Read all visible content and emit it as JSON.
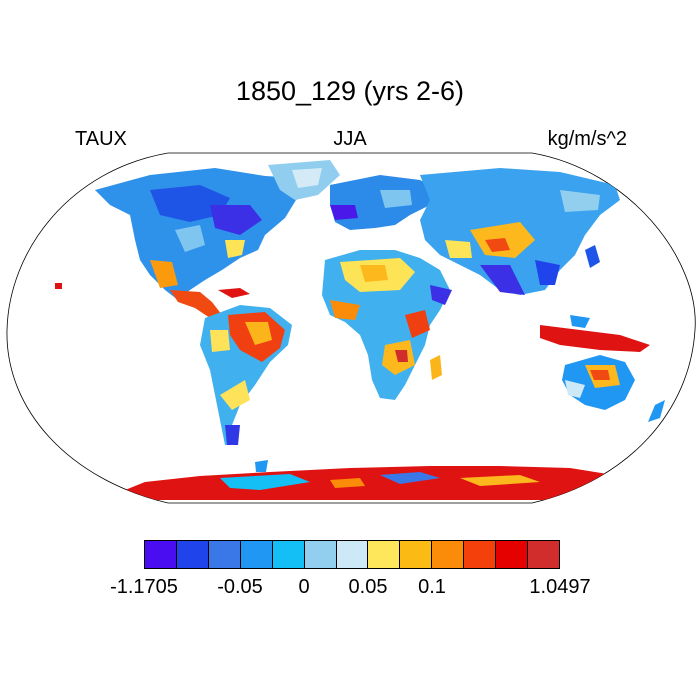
{
  "title": "1850_129 (yrs 2-6)",
  "left_label": "TAUX",
  "center_label": "JJA",
  "right_label": "kg/m/s^2",
  "colorbar": {
    "colors": [
      "#4a0df2",
      "#1f44eb",
      "#3a78e8",
      "#2197f4",
      "#14bff5",
      "#92ceee",
      "#cde8f7",
      "#fee75a",
      "#fcbb14",
      "#fb8c0a",
      "#f4400b",
      "#e60101",
      "#d12d2d"
    ],
    "labels": [
      {
        "text": "-1.1705",
        "edge": 0
      },
      {
        "text": "-0.05",
        "edge": 3
      },
      {
        "text": "0",
        "edge": 5
      },
      {
        "text": "0.05",
        "edge": 7
      },
      {
        "text": "0.1",
        "edge": 9
      },
      {
        "text": "1.0497",
        "edge": 13
      }
    ]
  }
}
